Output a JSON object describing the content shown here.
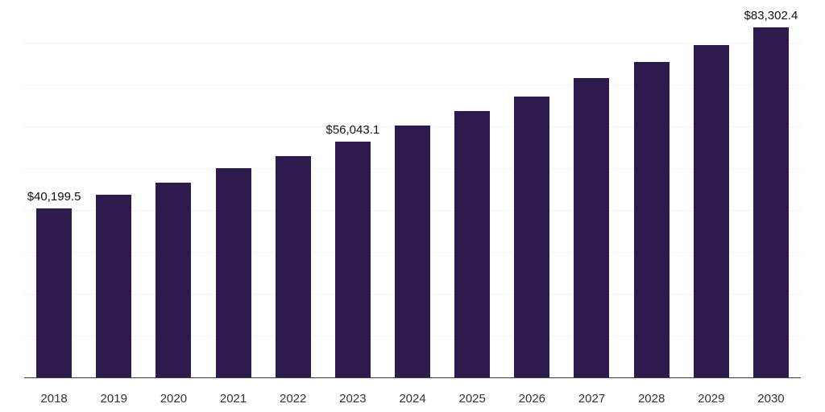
{
  "chart_data": {
    "type": "bar",
    "title": "",
    "xlabel": "",
    "ylabel": "",
    "categories": [
      "2018",
      "2019",
      "2020",
      "2021",
      "2022",
      "2023",
      "2024",
      "2025",
      "2026",
      "2027",
      "2028",
      "2029",
      "2030"
    ],
    "values": [
      40199.5,
      43400,
      46200,
      49700,
      52700,
      56043.1,
      59900,
      63400,
      66800,
      71100,
      74950,
      79100,
      83302.4
    ],
    "annotations": {
      "2018": "$40,199.5",
      "2023": "$56,043.1",
      "2030": "$83,302.4"
    },
    "bar_color": "#2d1b4e",
    "axis_line_color": "#3c3c3c",
    "grid": "horizontal-faint",
    "gridline_color": "#f3f3f3",
    "legend": "none",
    "ylim": [
      0,
      88000
    ]
  }
}
